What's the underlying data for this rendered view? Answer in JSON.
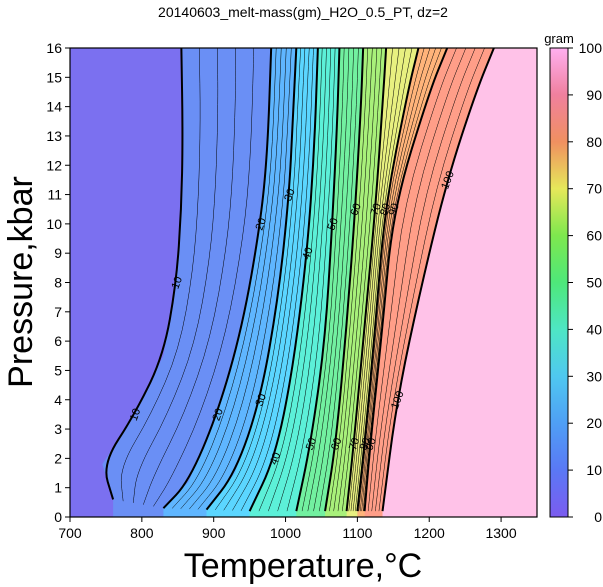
{
  "chart_data": {
    "type": "heatmap",
    "title": "20140603_melt-mass(gm)_H2O_0.5_PT, dz=2",
    "xlabel": "Temperature,°C",
    "ylabel": "Pressure,kbar",
    "xlim": [
      700,
      1350
    ],
    "ylim": [
      0,
      16
    ],
    "x_ticks": [
      "700",
      "800",
      "900",
      "1000",
      "1100",
      "1200",
      "1300"
    ],
    "y_ticks": [
      "0",
      "1",
      "2",
      "3",
      "4",
      "5",
      "6",
      "7",
      "8",
      "9",
      "10",
      "11",
      "12",
      "13",
      "14",
      "15",
      "16"
    ],
    "colorbar": {
      "unit": "gram",
      "range": [
        0,
        100
      ],
      "ticks": [
        "0",
        "10",
        "20",
        "30",
        "40",
        "50",
        "60",
        "70",
        "80",
        "90",
        "100"
      ]
    },
    "contour_interval": 2,
    "contours": [
      {
        "level": 10,
        "label": "10",
        "points": [
          [
            760,
            0.6
          ],
          [
            745,
            1.8
          ],
          [
            790,
            3.5
          ],
          [
            830,
            5.5
          ],
          [
            848,
            8
          ],
          [
            855,
            10.5
          ],
          [
            857,
            13
          ],
          [
            855,
            16
          ]
        ]
      },
      {
        "level": 20,
        "label": "20",
        "points": [
          [
            830,
            0.3
          ],
          [
            865,
            1.2
          ],
          [
            905,
            3.5
          ],
          [
            940,
            6.5
          ],
          [
            965,
            10
          ],
          [
            975,
            12.5
          ],
          [
            980,
            16
          ]
        ]
      },
      {
        "level": 30,
        "label": "30",
        "points": [
          [
            890,
            0.25
          ],
          [
            930,
            1.5
          ],
          [
            965,
            4
          ],
          [
            990,
            7.5
          ],
          [
            1005,
            11
          ],
          [
            1010,
            13.5
          ],
          [
            1015,
            16
          ]
        ]
      },
      {
        "level": 40,
        "label": "40",
        "points": [
          [
            950,
            0.2
          ],
          [
            985,
            2
          ],
          [
            1010,
            5
          ],
          [
            1030,
            9
          ],
          [
            1040,
            12.5
          ],
          [
            1045,
            16
          ]
        ]
      },
      {
        "level": 50,
        "label": "50",
        "points": [
          [
            1015,
            0.2
          ],
          [
            1035,
            2.5
          ],
          [
            1055,
            6
          ],
          [
            1065,
            10
          ],
          [
            1072,
            13.5
          ],
          [
            1075,
            16
          ]
        ]
      },
      {
        "level": 60,
        "label": "60",
        "points": [
          [
            1055,
            0.2
          ],
          [
            1070,
            2.5
          ],
          [
            1085,
            6.5
          ],
          [
            1097,
            10.5
          ],
          [
            1105,
            14
          ],
          [
            1108,
            16
          ]
        ]
      },
      {
        "level": 70,
        "label": "70",
        "points": [
          [
            1085,
            0.2
          ],
          [
            1095,
            2.5
          ],
          [
            1110,
            6.5
          ],
          [
            1125,
            10.5
          ],
          [
            1135,
            14
          ],
          [
            1140,
            16
          ]
        ]
      },
      {
        "level": 80,
        "label": "80",
        "points": [
          [
            1100,
            0.2
          ],
          [
            1110,
            2.5
          ],
          [
            1125,
            6.5
          ],
          [
            1138,
            10.5
          ],
          [
            1170,
            14.5
          ],
          [
            1185,
            16
          ]
        ]
      },
      {
        "level": 90,
        "label": "90",
        "points": [
          [
            1110,
            0.2
          ],
          [
            1118,
            2.5
          ],
          [
            1135,
            6.5
          ],
          [
            1150,
            10.5
          ],
          [
            1200,
            14.5
          ],
          [
            1225,
            16
          ]
        ]
      },
      {
        "level": 100,
        "label": "100",
        "points": [
          [
            1135,
            0.2
          ],
          [
            1155,
            4
          ],
          [
            1190,
            8
          ],
          [
            1225,
            11.5
          ],
          [
            1265,
            14.5
          ],
          [
            1290,
            16
          ]
        ]
      }
    ],
    "color_regions": [
      {
        "max_temp": 820,
        "color": "#7b70f0"
      },
      {
        "max_temp": 870,
        "color": "#6a8ff5"
      },
      {
        "max_temp": 930,
        "color": "#5fb6ff"
      },
      {
        "max_temp": 990,
        "color": "#5bd6ff"
      },
      {
        "max_temp": 1040,
        "color": "#5cf0d8"
      },
      {
        "max_temp": 1080,
        "color": "#72f0a0"
      },
      {
        "max_temp": 1110,
        "color": "#a8f07a"
      },
      {
        "max_temp": 1130,
        "color": "#e8f080"
      },
      {
        "max_temp": 1160,
        "color": "#ffd07a"
      },
      {
        "max_temp": 1220,
        "color": "#ff9e88"
      },
      {
        "max_temp": 1350,
        "color": "#ffc2e8"
      }
    ],
    "grid": false,
    "legend": "colorbar-right"
  }
}
